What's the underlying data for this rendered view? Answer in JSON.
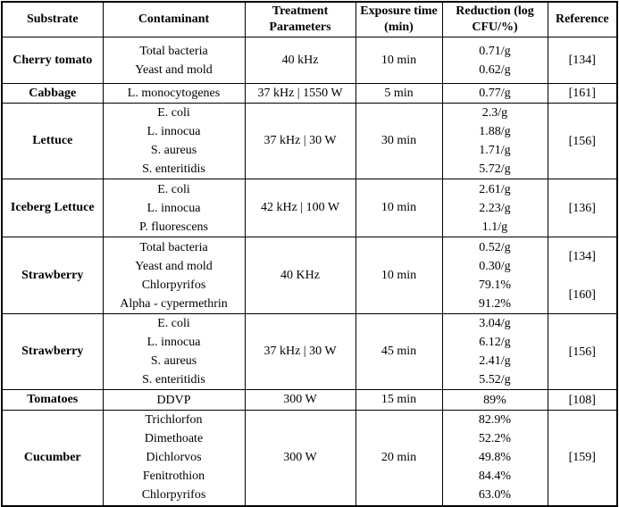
{
  "colors": {
    "border": "#000000",
    "text": "#000000",
    "background": "#ffffff"
  },
  "table": {
    "columns": [
      "Substrate",
      "Contaminant",
      "Treatment Parameters",
      "Exposure time (min)",
      "Reduction (log CFU/%)",
      "Reference"
    ],
    "rows": [
      {
        "substrate": "Cherry tomato",
        "contaminants": [
          "Total bacteria",
          "Yeast and mold"
        ],
        "treatment": "40 kHz",
        "exposure": "10 min",
        "reductions": [
          "0.71/g",
          "0.62/g"
        ],
        "references": [
          "[134]"
        ]
      },
      {
        "substrate": "Cabbage",
        "contaminants": [
          "L. monocytogenes"
        ],
        "treatment": "37 kHz | 1550 W",
        "exposure": "5 min",
        "reductions": [
          "0.77/g"
        ],
        "references": [
          "[161]"
        ]
      },
      {
        "substrate": "Lettuce",
        "contaminants": [
          "E. coli",
          "L. innocua",
          "S. aureus",
          "S. enteritidis"
        ],
        "treatment": "37 kHz | 30 W",
        "exposure": "30 min",
        "reductions": [
          "2.3/g",
          "1.88/g",
          "1.71/g",
          "5.72/g"
        ],
        "references": [
          "[156]"
        ]
      },
      {
        "substrate": "Iceberg Lettuce",
        "contaminants": [
          "E. coli",
          "L. innocua",
          "P. fluorescens"
        ],
        "treatment": "42 kHz | 100 W",
        "exposure": "10 min",
        "reductions": [
          "2.61/g",
          "2.23/g",
          "1.1/g"
        ],
        "references": [
          "[136]"
        ]
      },
      {
        "substrate": "Strawberry",
        "contaminants": [
          "Total bacteria",
          "Yeast and mold",
          "Chlorpyrifos",
          "Alpha - cypermethrin"
        ],
        "treatment": "40 KHz",
        "exposure": "10 min",
        "reductions": [
          "0.52/g",
          "0.30/g",
          "79.1%",
          "91.2%"
        ],
        "references": [
          "[134]",
          "[160]"
        ]
      },
      {
        "substrate": "Strawberry",
        "contaminants": [
          "E. coli",
          "L. innocua",
          "S. aureus",
          "S. enteritidis"
        ],
        "treatment": "37 kHz | 30 W",
        "exposure": "45 min",
        "reductions": [
          "3.04/g",
          "6.12/g",
          "2.41/g",
          "5.52/g"
        ],
        "references": [
          "[156]"
        ]
      },
      {
        "substrate": "Tomatoes",
        "contaminants": [
          "DDVP"
        ],
        "treatment": "300 W",
        "exposure": "15 min",
        "reductions": [
          "89%"
        ],
        "references": [
          "[108]"
        ]
      },
      {
        "substrate": "Cucumber",
        "contaminants": [
          "Trichlorfon",
          "Dimethoate",
          "Dichlorvos",
          "Fenitrothion",
          "Chlorpyrifos"
        ],
        "treatment": "300 W",
        "exposure": "20 min",
        "reductions": [
          "82.9%",
          "52.2%",
          "49.8%",
          "84.4%",
          "63.0%"
        ],
        "references": [
          "[159]"
        ]
      }
    ]
  }
}
